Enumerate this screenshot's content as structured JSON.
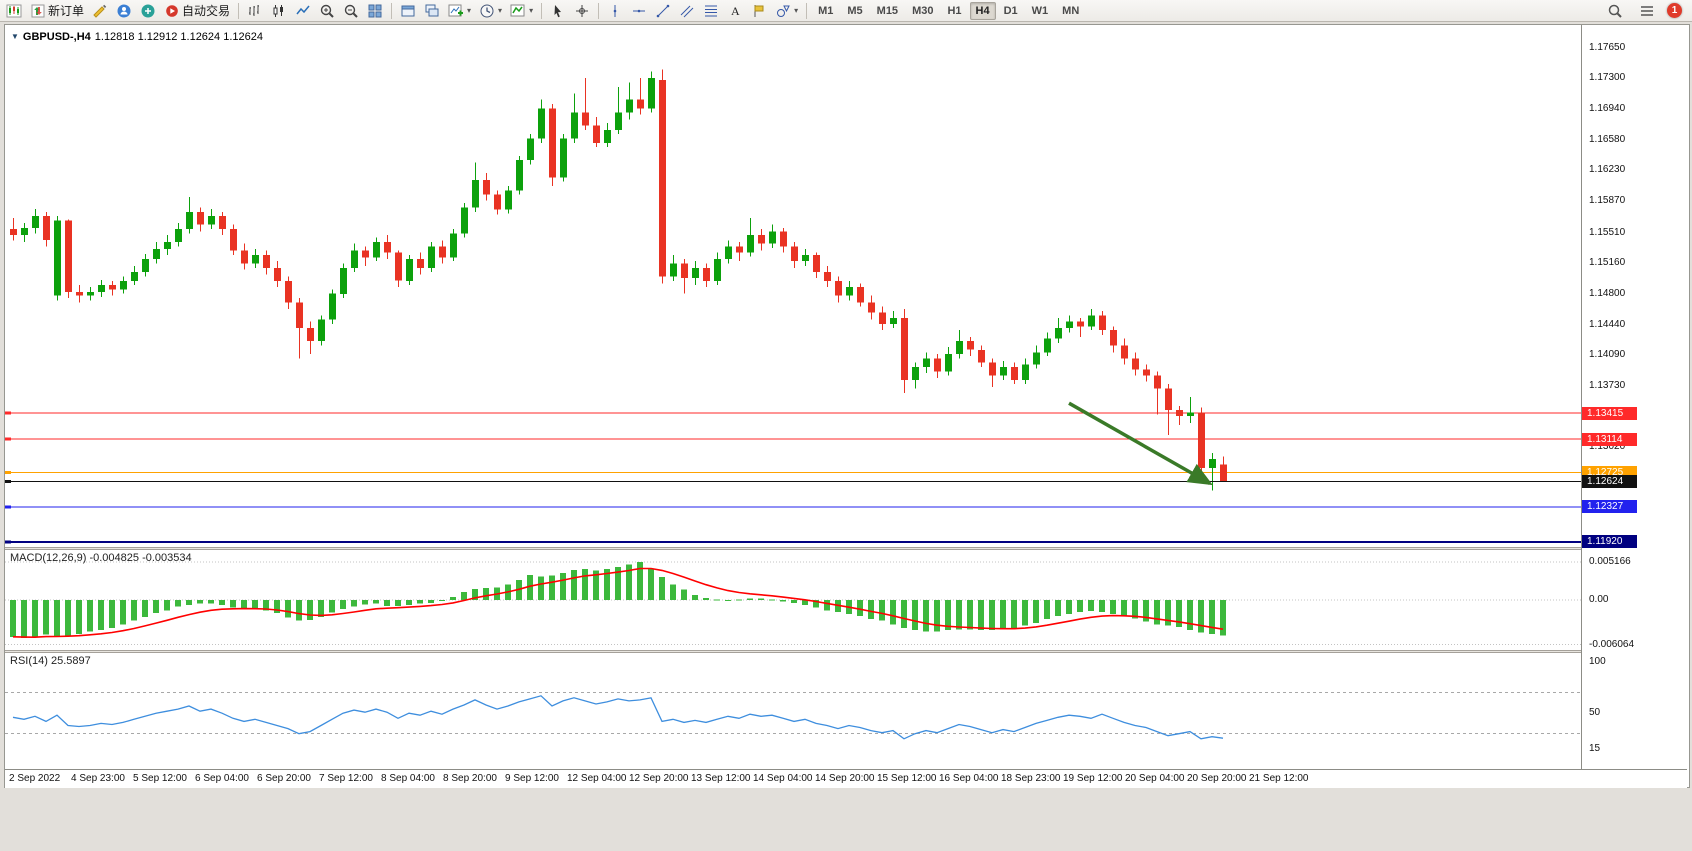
{
  "toolbar": {
    "buttons": [
      {
        "name": "charts-button",
        "icon": "new-chart-candles"
      },
      {
        "name": "new-order-button",
        "icon": "new-order",
        "label": "新订单"
      },
      {
        "name": "metaeditor-button",
        "icon": "editor"
      },
      {
        "name": "market-watch-button",
        "icon": "market"
      },
      {
        "name": "navigator-button",
        "icon": "navigator"
      },
      {
        "name": "autotrading-button",
        "icon": "autotrade",
        "label": "自动交易"
      },
      {
        "sep": true
      },
      {
        "name": "bar-chart-button",
        "icon": "bar-chart"
      },
      {
        "name": "candle-chart-button",
        "icon": "candle-chart"
      },
      {
        "name": "line-chart-button",
        "icon": "line-chart"
      },
      {
        "name": "zoom-in-button",
        "icon": "zoom-in"
      },
      {
        "name": "zoom-out-button",
        "icon": "zoom-out"
      },
      {
        "name": "tile-windows-button",
        "icon": "tile"
      },
      {
        "sep": true
      },
      {
        "name": "auto-arrange-button",
        "icon": "arrange"
      },
      {
        "name": "cascade-windows-button",
        "icon": "cascade"
      },
      {
        "name": "new-chart-button",
        "icon": "new-chart",
        "dropdown": true
      },
      {
        "name": "profiles-button",
        "icon": "clock",
        "dropdown": true
      },
      {
        "name": "indicators-button",
        "icon": "indicators",
        "dropdown": true
      },
      {
        "sep": true
      },
      {
        "name": "cursor-button",
        "icon": "cursor"
      },
      {
        "name": "crosshair-button",
        "icon": "crosshair"
      },
      {
        "sep": true
      },
      {
        "name": "vertical-line-button",
        "icon": "vline"
      },
      {
        "name": "horizontal-line-button",
        "icon": "hline"
      },
      {
        "name": "trendline-button",
        "icon": "trendline"
      },
      {
        "name": "channel-button",
        "icon": "channel"
      },
      {
        "name": "fibonacci-button",
        "icon": "fibo"
      },
      {
        "name": "text-button",
        "icon": "text"
      },
      {
        "name": "text-label-button",
        "icon": "label"
      },
      {
        "name": "shapes-button",
        "icon": "shapes",
        "dropdown": true
      },
      {
        "sep": true
      }
    ],
    "timeframes": [
      "M1",
      "M5",
      "M15",
      "M30",
      "H1",
      "H4",
      "D1",
      "W1",
      "MN"
    ],
    "active_timeframe": "H4",
    "right": {
      "notification_count": "1"
    }
  },
  "chart_data": [
    {
      "type": "candlestick",
      "title": "GBPUSD-,H4",
      "ohlc_line": "1.12818 1.12912 1.12624 1.12624",
      "up_color": "#0CA10C",
      "down_color": "#E93323",
      "y_top": 1.17917,
      "y_bottom": 1.11862,
      "y_ticks": [
        1.1765,
        1.173,
        1.1694,
        1.1658,
        1.1623,
        1.1587,
        1.1551,
        1.1516,
        1.148,
        1.1444,
        1.1409,
        1.1373,
        1.13371,
        1.1302
      ],
      "hlines": [
        {
          "price": 1.13415,
          "color": "#FF2A2A",
          "badge": "1.13415",
          "width": 1
        },
        {
          "price": 1.13114,
          "color": "#FF2A2A",
          "badge": "1.13114",
          "width": 1
        },
        {
          "price": 1.12725,
          "color": "#FFA200",
          "badge": "1.12725",
          "width": 1
        },
        {
          "price": 1.12624,
          "color": "#111111",
          "badge": "1.12624",
          "width": 1,
          "current": true
        },
        {
          "price": 1.12327,
          "color": "#2222EE",
          "badge": "1.12327",
          "width": 1
        },
        {
          "price": 1.1192,
          "color": "#000080",
          "badge": "1.11920",
          "width": 2
        }
      ],
      "arrow": {
        "from": [
          96,
          1.1353
        ],
        "to": [
          108.8,
          1.126
        ],
        "color": "#3A7A28"
      },
      "x_labels": [
        "2 Sep 2022",
        "4 Sep 23:00",
        "5 Sep 12:00",
        "6 Sep 04:00",
        "6 Sep 20:00",
        "7 Sep 12:00",
        "8 Sep 04:00",
        "8 Sep 20:00",
        "9 Sep 12:00",
        "12 Sep 04:00",
        "12 Sep 20:00",
        "13 Sep 12:00",
        "14 Sep 04:00",
        "14 Sep 20:00",
        "15 Sep 12:00",
        "16 Sep 04:00",
        "18 Sep 23:00",
        "19 Sep 12:00",
        "20 Sep 04:00",
        "20 Sep 20:00",
        "21 Sep 12:00"
      ],
      "candles": [
        [
          1.1555,
          1.1568,
          1.1542,
          1.1548
        ],
        [
          1.1548,
          1.1562,
          1.154,
          1.1556
        ],
        [
          1.1556,
          1.1578,
          1.155,
          1.157
        ],
        [
          1.157,
          1.1575,
          1.1535,
          1.1542
        ],
        [
          1.1478,
          1.157,
          1.1472,
          1.1565
        ],
        [
          1.1565,
          1.1566,
          1.1475,
          1.1482
        ],
        [
          1.1482,
          1.149,
          1.147,
          1.1478
        ],
        [
          1.1478,
          1.1488,
          1.1472,
          1.1482
        ],
        [
          1.1482,
          1.1496,
          1.1476,
          1.149
        ],
        [
          1.149,
          1.1495,
          1.1478,
          1.1485
        ],
        [
          1.1485,
          1.15,
          1.148,
          1.1495
        ],
        [
          1.1495,
          1.1512,
          1.149,
          1.1505
        ],
        [
          1.1505,
          1.1526,
          1.15,
          1.152
        ],
        [
          1.152,
          1.154,
          1.1515,
          1.1532
        ],
        [
          1.1532,
          1.1548,
          1.1525,
          1.154
        ],
        [
          1.154,
          1.1562,
          1.1535,
          1.1555
        ],
        [
          1.1555,
          1.1592,
          1.155,
          1.1575
        ],
        [
          1.1575,
          1.158,
          1.1552,
          1.156
        ],
        [
          1.156,
          1.1578,
          1.1555,
          1.157
        ],
        [
          1.157,
          1.1575,
          1.1548,
          1.1555
        ],
        [
          1.1555,
          1.156,
          1.1525,
          1.153
        ],
        [
          1.153,
          1.1538,
          1.1508,
          1.1515
        ],
        [
          1.1515,
          1.1532,
          1.151,
          1.1525
        ],
        [
          1.1525,
          1.153,
          1.1502,
          1.151
        ],
        [
          1.151,
          1.1518,
          1.1488,
          1.1495
        ],
        [
          1.1495,
          1.15,
          1.1462,
          1.147
        ],
        [
          1.147,
          1.1475,
          1.1405,
          1.144
        ],
        [
          1.144,
          1.1448,
          1.141,
          1.1425
        ],
        [
          1.1425,
          1.1455,
          1.142,
          1.145
        ],
        [
          1.145,
          1.1485,
          1.1445,
          1.148
        ],
        [
          1.148,
          1.1515,
          1.1475,
          1.151
        ],
        [
          1.151,
          1.1538,
          1.1505,
          1.153
        ],
        [
          1.153,
          1.1535,
          1.1512,
          1.1522
        ],
        [
          1.1522,
          1.1545,
          1.1518,
          1.154
        ],
        [
          1.154,
          1.1548,
          1.152,
          1.1528
        ],
        [
          1.1528,
          1.153,
          1.1488,
          1.1495
        ],
        [
          1.1495,
          1.1525,
          1.149,
          1.152
        ],
        [
          1.152,
          1.1528,
          1.1502,
          1.151
        ],
        [
          1.151,
          1.154,
          1.1505,
          1.1535
        ],
        [
          1.1535,
          1.1542,
          1.1515,
          1.1522
        ],
        [
          1.1522,
          1.1555,
          1.1518,
          1.155
        ],
        [
          1.155,
          1.1585,
          1.1545,
          1.158
        ],
        [
          1.158,
          1.1632,
          1.1575,
          1.1612
        ],
        [
          1.1612,
          1.162,
          1.1588,
          1.1595
        ],
        [
          1.1595,
          1.16,
          1.1572,
          1.1578
        ],
        [
          1.1578,
          1.1605,
          1.1573,
          1.16
        ],
        [
          1.16,
          1.164,
          1.1595,
          1.1635
        ],
        [
          1.1635,
          1.1665,
          1.163,
          1.166
        ],
        [
          1.166,
          1.1705,
          1.1655,
          1.1695
        ],
        [
          1.1695,
          1.17,
          1.1605,
          1.1615
        ],
        [
          1.1615,
          1.1665,
          1.161,
          1.166
        ],
        [
          1.166,
          1.1712,
          1.1655,
          1.169
        ],
        [
          1.169,
          1.173,
          1.167,
          1.1675
        ],
        [
          1.1675,
          1.1685,
          1.165,
          1.1655
        ],
        [
          1.1655,
          1.1678,
          1.165,
          1.167
        ],
        [
          1.167,
          1.172,
          1.1665,
          1.169
        ],
        [
          1.169,
          1.1725,
          1.1682,
          1.1705
        ],
        [
          1.1705,
          1.173,
          1.1688,
          1.1695
        ],
        [
          1.1695,
          1.1738,
          1.169,
          1.173
        ],
        [
          1.1728,
          1.174,
          1.1492,
          1.15
        ],
        [
          1.15,
          1.1525,
          1.1495,
          1.1515
        ],
        [
          1.1515,
          1.152,
          1.148,
          1.1498
        ],
        [
          1.1498,
          1.1518,
          1.149,
          1.151
        ],
        [
          1.151,
          1.1515,
          1.1488,
          1.1495
        ],
        [
          1.1495,
          1.1528,
          1.149,
          1.152
        ],
        [
          1.152,
          1.1542,
          1.1515,
          1.1535
        ],
        [
          1.1535,
          1.154,
          1.1518,
          1.1528
        ],
        [
          1.1528,
          1.1568,
          1.1523,
          1.1548
        ],
        [
          1.1548,
          1.1555,
          1.153,
          1.1538
        ],
        [
          1.1538,
          1.156,
          1.1533,
          1.1552
        ],
        [
          1.1552,
          1.1556,
          1.1528,
          1.1535
        ],
        [
          1.1535,
          1.154,
          1.151,
          1.1518
        ],
        [
          1.1518,
          1.1532,
          1.1512,
          1.1525
        ],
        [
          1.1525,
          1.1528,
          1.1498,
          1.1505
        ],
        [
          1.1505,
          1.1512,
          1.1488,
          1.1495
        ],
        [
          1.1495,
          1.15,
          1.147,
          1.1478
        ],
        [
          1.1478,
          1.1495,
          1.1472,
          1.1488
        ],
        [
          1.1488,
          1.1492,
          1.1465,
          1.147
        ],
        [
          1.147,
          1.1478,
          1.145,
          1.1458
        ],
        [
          1.1458,
          1.1465,
          1.1438,
          1.1445
        ],
        [
          1.1445,
          1.146,
          1.144,
          1.1452
        ],
        [
          1.1452,
          1.1462,
          1.1365,
          1.138
        ],
        [
          1.138,
          1.14,
          1.137,
          1.1395
        ],
        [
          1.1395,
          1.1412,
          1.1388,
          1.1405
        ],
        [
          1.1405,
          1.141,
          1.1382,
          1.139
        ],
        [
          1.139,
          1.1418,
          1.1385,
          1.141
        ],
        [
          1.141,
          1.1438,
          1.1405,
          1.1425
        ],
        [
          1.1425,
          1.143,
          1.1408,
          1.1415
        ],
        [
          1.1415,
          1.142,
          1.1395,
          1.14
        ],
        [
          1.14,
          1.1405,
          1.1372,
          1.1385
        ],
        [
          1.1385,
          1.1402,
          1.138,
          1.1395
        ],
        [
          1.1395,
          1.14,
          1.1375,
          1.138
        ],
        [
          1.138,
          1.1405,
          1.1375,
          1.1398
        ],
        [
          1.1398,
          1.142,
          1.1393,
          1.1412
        ],
        [
          1.1412,
          1.1435,
          1.1408,
          1.1428
        ],
        [
          1.1428,
          1.1452,
          1.1423,
          1.144
        ],
        [
          1.144,
          1.1455,
          1.1435,
          1.1448
        ],
        [
          1.1448,
          1.1452,
          1.143,
          1.1442
        ],
        [
          1.1442,
          1.1462,
          1.1438,
          1.1455
        ],
        [
          1.1455,
          1.146,
          1.1432,
          1.1438
        ],
        [
          1.1438,
          1.1442,
          1.1412,
          1.142
        ],
        [
          1.142,
          1.1428,
          1.1398,
          1.1405
        ],
        [
          1.1405,
          1.1412,
          1.1385,
          1.1392
        ],
        [
          1.1392,
          1.1398,
          1.1378,
          1.1385
        ],
        [
          1.1385,
          1.139,
          1.134,
          1.137
        ],
        [
          1.137,
          1.1375,
          1.1316,
          1.1345
        ],
        [
          1.1345,
          1.135,
          1.1328,
          1.1338
        ],
        [
          1.1338,
          1.136,
          1.133,
          1.1342
        ],
        [
          1.1342,
          1.1348,
          1.1268,
          1.1278
        ],
        [
          1.1278,
          1.1295,
          1.1252,
          1.1288
        ],
        [
          1.12818,
          1.12912,
          1.12624,
          1.12624
        ]
      ]
    },
    {
      "type": "bar",
      "title": "MACD(12,26,9) -0.004825 -0.003534",
      "histogram_color": "#3CB83C",
      "signal_color": "#FF0000",
      "y_ticks": [
        0.005166,
        0,
        -0.006064
      ],
      "y_max": 0.0068,
      "y_min": -0.0068,
      "values": [
        -0.005,
        -0.0052,
        -0.0051,
        -0.0047,
        -0.0049,
        -0.0048,
        -0.0046,
        -0.0043,
        -0.0041,
        -0.0038,
        -0.0033,
        -0.0028,
        -0.0023,
        -0.0018,
        -0.0014,
        -0.0009,
        -0.0007,
        -0.0005,
        -0.0005,
        -0.0007,
        -0.001,
        -0.0011,
        -0.0012,
        -0.0014,
        -0.0018,
        -0.0024,
        -0.0028,
        -0.0027,
        -0.0023,
        -0.0017,
        -0.0012,
        -0.0009,
        -0.0006,
        -0.0005,
        -0.0008,
        -0.0008,
        -0.0007,
        -0.0005,
        -0.0004,
        -0.0001,
        0.0004,
        0.0011,
        0.0015,
        0.0016,
        0.0017,
        0.0021,
        0.0027,
        0.0034,
        0.0032,
        0.0033,
        0.0037,
        0.0041,
        0.0042,
        0.004,
        0.0042,
        0.0045,
        0.0048,
        0.0052,
        0.0043,
        0.0031,
        0.0021,
        0.0014,
        0.0007,
        0.0003,
        0.0001,
        0.0,
        0.0001,
        0.0002,
        0.0002,
        0.0001,
        -0.0002,
        -0.0004,
        -0.0007,
        -0.001,
        -0.0014,
        -0.0016,
        -0.0019,
        -0.0022,
        -0.0026,
        -0.0028,
        -0.0033,
        -0.0038,
        -0.0041,
        -0.0043,
        -0.0043,
        -0.0041,
        -0.004,
        -0.004,
        -0.0041,
        -0.0041,
        -0.004,
        -0.0039,
        -0.0035,
        -0.0031,
        -0.0026,
        -0.0022,
        -0.0019,
        -0.0016,
        -0.0015,
        -0.0016,
        -0.0019,
        -0.0022,
        -0.0025,
        -0.0029,
        -0.0033,
        -0.0035,
        -0.0037,
        -0.0041,
        -0.0044,
        -0.0046,
        -0.00482
      ]
    },
    {
      "type": "line",
      "title": "RSI(14) 25.5897",
      "line_color": "#3E8EDE",
      "levels": [
        70,
        30
      ],
      "y_ticks": [
        100,
        50,
        15
      ],
      "y_max": 108.8,
      "y_min": -4.5,
      "values": [
        46,
        44,
        47,
        42,
        48,
        38,
        37,
        38,
        40,
        39,
        41,
        44,
        47,
        50,
        52,
        54,
        57,
        52,
        54,
        50,
        45,
        42,
        44,
        41,
        38,
        35,
        30,
        32,
        38,
        44,
        50,
        53,
        51,
        54,
        51,
        45,
        50,
        48,
        52,
        49,
        54,
        58,
        63,
        58,
        54,
        57,
        61,
        64,
        67,
        57,
        62,
        65,
        62,
        59,
        61,
        64,
        62,
        63,
        65,
        42,
        44,
        41,
        43,
        41,
        44,
        47,
        45,
        49,
        47,
        48,
        45,
        42,
        44,
        40,
        38,
        35,
        38,
        36,
        33,
        31,
        33,
        25,
        30,
        33,
        31,
        35,
        39,
        37,
        34,
        31,
        34,
        32,
        36,
        40,
        43,
        46,
        48,
        47,
        45,
        49,
        45,
        41,
        38,
        36,
        32,
        28,
        30,
        32,
        25,
        27,
        25.59
      ]
    }
  ]
}
